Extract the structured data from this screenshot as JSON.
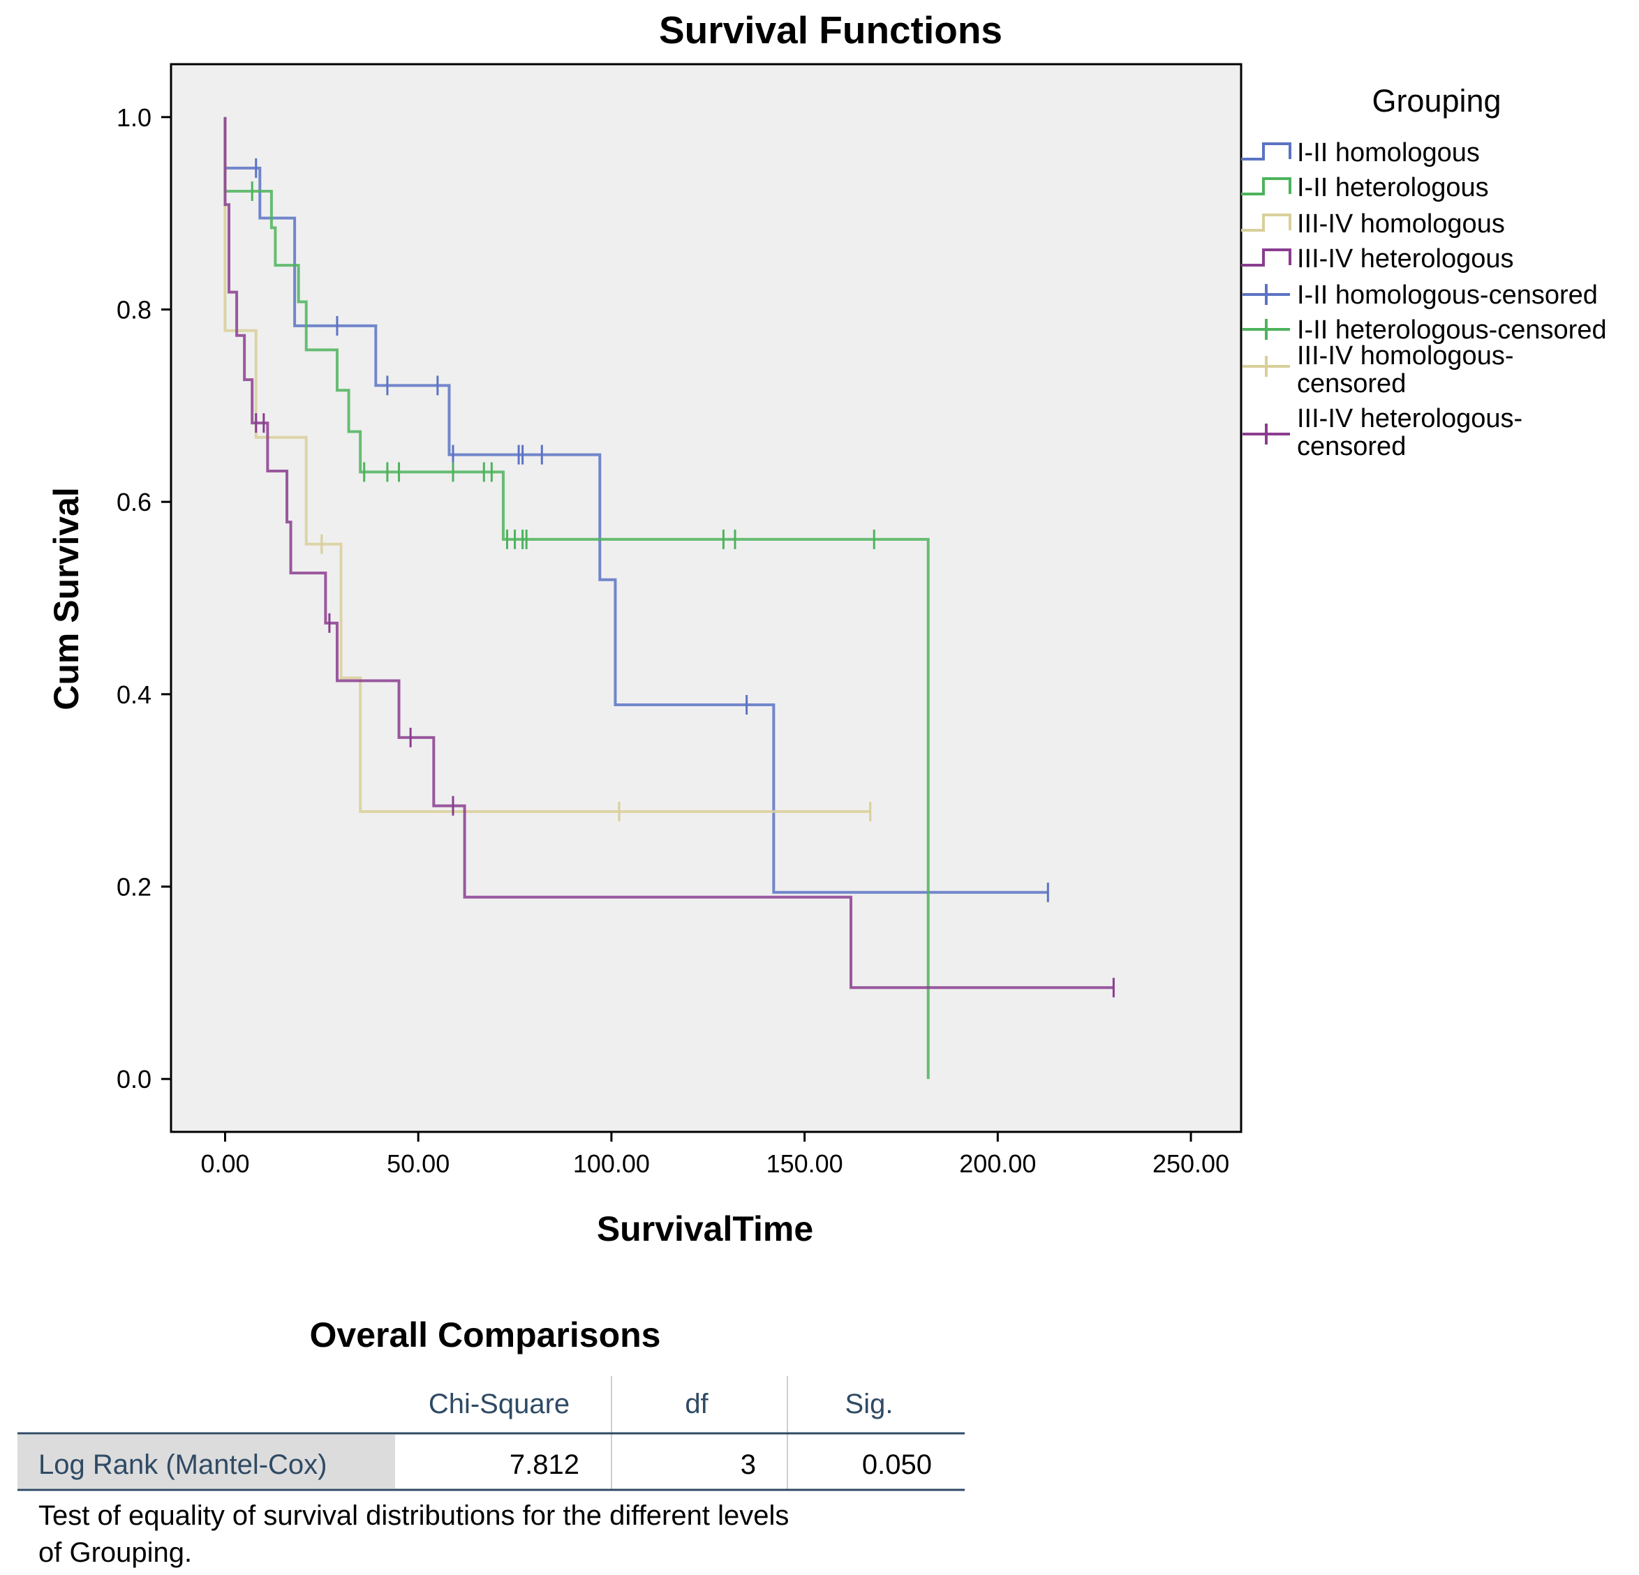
{
  "chart_data": {
    "type": "line",
    "subtype": "kaplan-meier",
    "title": "Survival Functions",
    "xlabel": "SurvivalTime",
    "ylabel": "Cum Survival",
    "xlim": [
      -14,
      263
    ],
    "ylim": [
      -0.055,
      1.055
    ],
    "xticks": [
      "0.00",
      "50.00",
      "100.00",
      "150.00",
      "200.00",
      "250.00"
    ],
    "xtick_values": [
      0,
      50,
      100,
      150,
      200,
      250
    ],
    "yticks": [
      "0.0",
      "0.2",
      "0.4",
      "0.6",
      "0.8",
      "1.0"
    ],
    "ytick_values": [
      0,
      0.2,
      0.4,
      0.6,
      0.8,
      1.0
    ],
    "legend_title": "Grouping",
    "legend": [
      "I-II homologous",
      "I-II heterologous",
      "III-IV homologous",
      "III-IV heterologous",
      "I-II homologous-censored",
      "I-II heterologous-censored",
      "III-IV homologous-censored",
      "III-IV heterologous-censored"
    ],
    "series": [
      {
        "name": "I-II homologous",
        "color": "#5b73c4",
        "steps": [
          [
            0,
            0.947
          ],
          [
            9,
            0.895
          ],
          [
            18,
            0.783
          ],
          [
            39,
            0.721
          ],
          [
            58,
            0.649
          ],
          [
            97,
            0.519
          ],
          [
            101,
            0.389
          ],
          [
            142,
            0.194
          ],
          [
            213,
            0.194
          ]
        ],
        "censored": [
          [
            8,
            0.947
          ],
          [
            29,
            0.783
          ],
          [
            42,
            0.721
          ],
          [
            55,
            0.721
          ],
          [
            59,
            0.649
          ],
          [
            76,
            0.649
          ],
          [
            77,
            0.649
          ],
          [
            82,
            0.649
          ],
          [
            135,
            0.389
          ],
          [
            213,
            0.194
          ]
        ]
      },
      {
        "name": "I-II heterologous",
        "color": "#4db35c",
        "steps": [
          [
            0,
            0.923
          ],
          [
            12,
            0.885
          ],
          [
            13,
            0.846
          ],
          [
            19,
            0.808
          ],
          [
            21,
            0.758
          ],
          [
            29,
            0.716
          ],
          [
            32,
            0.673
          ],
          [
            35,
            0.631
          ],
          [
            72,
            0.561
          ],
          [
            182,
            0.561
          ],
          [
            182,
            0
          ]
        ],
        "censored": [
          [
            7,
            0.923
          ],
          [
            36,
            0.631
          ],
          [
            42,
            0.631
          ],
          [
            45,
            0.631
          ],
          [
            59,
            0.631
          ],
          [
            67,
            0.631
          ],
          [
            69,
            0.631
          ],
          [
            73,
            0.561
          ],
          [
            75,
            0.561
          ],
          [
            77,
            0.561
          ],
          [
            78,
            0.561
          ],
          [
            129,
            0.561
          ],
          [
            132,
            0.561
          ],
          [
            168,
            0.561
          ]
        ],
        "final_time": 182
      },
      {
        "name": "III-IV homologous",
        "color": "#d9cf9a",
        "steps": [
          [
            0,
            0.778
          ],
          [
            8,
            0.667
          ],
          [
            21,
            0.556
          ],
          [
            30,
            0.417
          ],
          [
            35,
            0.278
          ],
          [
            167,
            0.278
          ]
        ],
        "censored": [
          [
            25,
            0.556
          ],
          [
            102,
            0.278
          ],
          [
            167,
            0.278
          ]
        ]
      },
      {
        "name": "III-IV heterologous",
        "color": "#8a3d8f",
        "steps": [
          [
            0,
            0.909
          ],
          [
            1,
            0.818
          ],
          [
            3,
            0.773
          ],
          [
            5,
            0.727
          ],
          [
            7,
            0.682
          ],
          [
            11,
            0.632
          ],
          [
            16,
            0.579
          ],
          [
            17,
            0.526
          ],
          [
            26,
            0.474
          ],
          [
            29,
            0.414
          ],
          [
            45,
            0.355
          ],
          [
            54,
            0.284
          ],
          [
            62,
            0.189
          ],
          [
            162,
            0.095
          ],
          [
            230,
            0.095
          ]
        ],
        "censored": [
          [
            8,
            0.682
          ],
          [
            10,
            0.682
          ],
          [
            27,
            0.474
          ],
          [
            48,
            0.355
          ],
          [
            59,
            0.284
          ],
          [
            230,
            0.095
          ]
        ]
      }
    ]
  },
  "comparisons_table": {
    "title": "Overall Comparisons",
    "headers": [
      "Chi-Square",
      "df",
      "Sig."
    ],
    "row_label": "Log Rank (Mantel-Cox)",
    "values": [
      "7.812",
      "3",
      "0.050"
    ],
    "footnote_line1": "Test of equality of survival distributions for the different levels",
    "footnote_line2": "of Grouping."
  },
  "colors": {
    "plot_background": "#efefef",
    "row_label_background": "#dcdcdc",
    "header_text": "#2f4a64"
  }
}
